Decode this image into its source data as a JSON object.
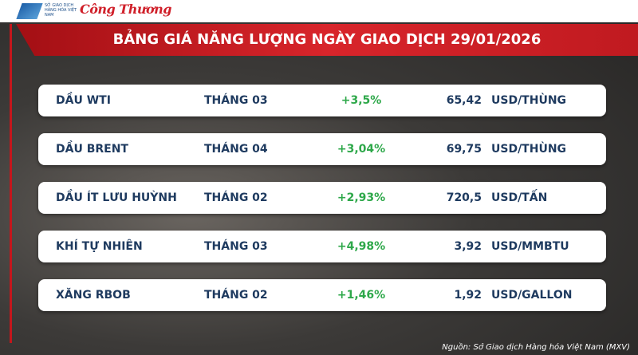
{
  "header": {
    "logo_text": "SỞ GIAO DỊCH HÀNG HÓA VIỆT NAM",
    "brand": "Công Thương",
    "title": "BẢNG GIÁ NĂNG LƯỢNG NGÀY GIAO DỊCH 29/01/2026"
  },
  "table": {
    "rows": [
      [
        "DẦU WTI",
        "THÁNG 03",
        "+3,5%",
        "65,42",
        "USD/THÙNG"
      ],
      [
        "DẦU BRENT",
        "THÁNG 04",
        "+3,04%",
        "69,75",
        "USD/THÙNG"
      ],
      [
        "DẦU ÍT LƯU HUỲNH",
        "THÁNG 02",
        "+2,93%",
        "720,5",
        "USD/TẤN"
      ],
      [
        "KHÍ TỰ NHIÊN",
        "THÁNG 03",
        "+4,98%",
        "3,92",
        "USD/MMBTU"
      ],
      [
        "XĂNG RBOB",
        "THÁNG 02",
        "+1,46%",
        "1,92",
        "USD/GALLON"
      ]
    ]
  },
  "footer": {
    "source": "Nguồn: Sở Giao dịch Hàng hóa Việt Nam (MXV)"
  }
}
